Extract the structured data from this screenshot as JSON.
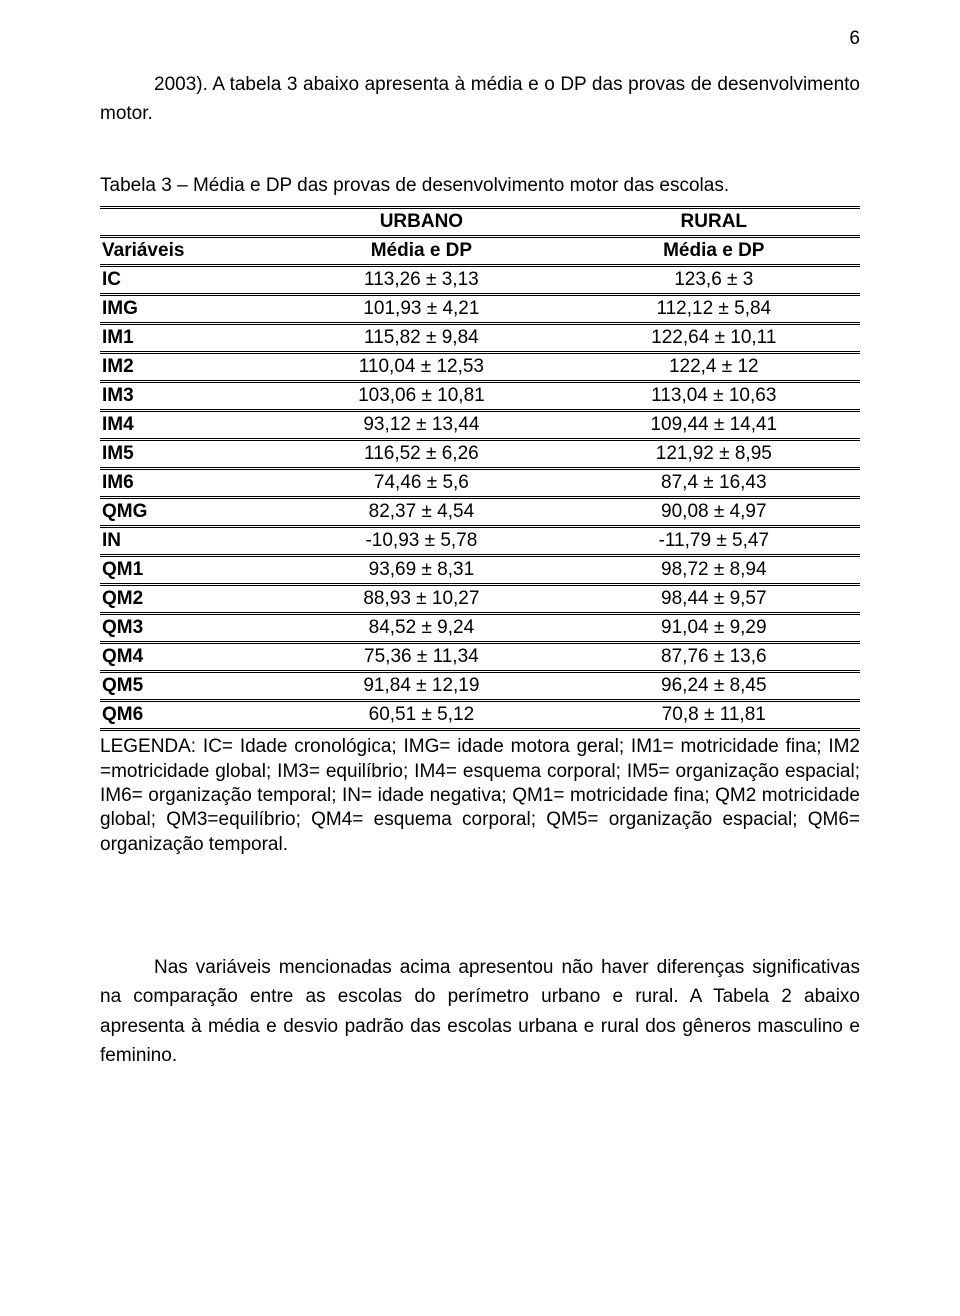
{
  "page_number": "6",
  "paragraph1": "2003). A tabela 3 abaixo apresenta à média e o DP das provas de desenvolvimento motor.",
  "table_title": "Tabela 3 – Média e DP das provas de desenvolvimento motor das escolas.",
  "table": {
    "group_headers": {
      "col2": "URBANO",
      "col3": "RURAL"
    },
    "headers": {
      "col1": "Variáveis",
      "col2": "Média e DP",
      "col3": "Média e DP"
    },
    "rows": [
      {
        "v": "IC",
        "u": "113,26 ± 3,13",
        "r": "123,6 ± 3"
      },
      {
        "v": "IMG",
        "u": "101,93 ± 4,21",
        "r": "112,12 ± 5,84"
      },
      {
        "v": "IM1",
        "u": "115,82 ± 9,84",
        "r": "122,64 ± 10,11"
      },
      {
        "v": "IM2",
        "u": "110,04 ± 12,53",
        "r": "122,4 ± 12"
      },
      {
        "v": "IM3",
        "u": "103,06 ± 10,81",
        "r": "113,04 ± 10,63"
      },
      {
        "v": "IM4",
        "u": "93,12 ± 13,44",
        "r": "109,44 ± 14,41"
      },
      {
        "v": "IM5",
        "u": "116,52 ± 6,26",
        "r": "121,92 ± 8,95"
      },
      {
        "v": "IM6",
        "u": "74,46 ± 5,6",
        "r": "87,4 ± 16,43"
      },
      {
        "v": "QMG",
        "u": "82,37 ± 4,54",
        "r": "90,08 ± 4,97"
      },
      {
        "v": "IN",
        "u": "-10,93 ± 5,78",
        "r": "-11,79 ± 5,47"
      },
      {
        "v": "QM1",
        "u": "93,69 ± 8,31",
        "r": "98,72 ± 8,94"
      },
      {
        "v": "QM2",
        "u": "88,93 ± 10,27",
        "r": "98,44 ± 9,57"
      },
      {
        "v": "QM3",
        "u": "84,52 ± 9,24",
        "r": "91,04 ± 9,29"
      },
      {
        "v": "QM4",
        "u": "75,36 ± 11,34",
        "r": "87,76 ± 13,6"
      },
      {
        "v": "QM5",
        "u": "91,84 ± 12,19",
        "r": "96,24 ± 8,45"
      },
      {
        "v": "QM6",
        "u": "60,51 ± 5,12",
        "r": "70,8 ± 11,81"
      }
    ]
  },
  "legend": "LEGENDA: IC= Idade cronológica; IMG= idade motora geral; IM1= motricidade fina; IM2 =motricidade global; IM3= equilíbrio; IM4= esquema corporal; IM5= organização espacial; IM6= organização temporal; IN= idade negativa; QM1= motricidade fina; QM2 motricidade global; QM3=equilíbrio; QM4= esquema corporal; QM5= organização espacial; QM6= organização temporal.",
  "paragraph2": "Nas variáveis mencionadas acima apresentou não haver diferenças significativas na comparação entre as escolas do perímetro urbano e rural. A Tabela 2 abaixo apresenta à média e desvio padrão das escolas urbana e rural dos gêneros masculino e feminino.",
  "style": {
    "background_color": "#ffffff",
    "text_color": "#000000",
    "font_family": "Arial",
    "body_font_size_pt": 14,
    "rule_color": "#000000",
    "rule_style": "double",
    "table_col_widths_pct": [
      22,
      39,
      39
    ]
  }
}
